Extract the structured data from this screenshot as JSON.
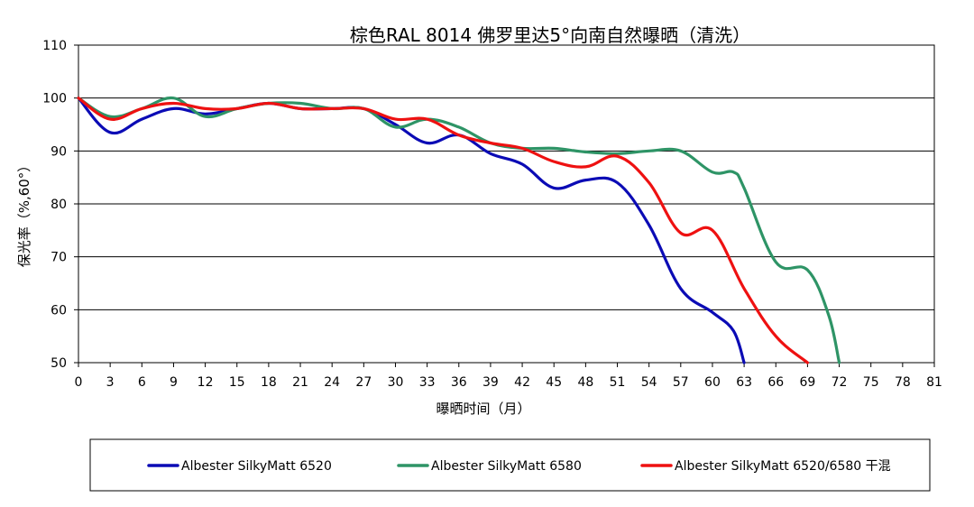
{
  "chart_data": {
    "type": "line",
    "title": "棕色RAL 8014 佛罗里达5°向南自然曝晒（清洗）",
    "xlabel": "曝晒时间（月）",
    "ylabel": "保光率（%,60°）",
    "xlim": [
      0,
      81
    ],
    "ylim": [
      50,
      110
    ],
    "x_ticks": [
      0,
      3,
      6,
      9,
      12,
      15,
      18,
      21,
      24,
      27,
      30,
      33,
      36,
      39,
      42,
      45,
      48,
      51,
      54,
      57,
      60,
      63,
      66,
      69,
      72,
      75,
      78,
      81
    ],
    "y_ticks": [
      50,
      60,
      70,
      80,
      90,
      100,
      110
    ],
    "grid": "horizontal",
    "legend_position": "bottom",
    "series": [
      {
        "name": "Albester SilkyMatt 6520",
        "color": "#0b0bb5",
        "x": [
          0,
          3,
          6,
          9,
          12,
          15,
          18,
          21,
          24,
          27,
          30,
          33,
          36,
          39,
          42,
          45,
          48,
          51,
          54,
          57,
          60,
          62,
          63
        ],
        "y": [
          100,
          93.5,
          96,
          98,
          97,
          98,
          99,
          98,
          98,
          98,
          95,
          91.5,
          93,
          89.5,
          87.5,
          83,
          84.5,
          84,
          76,
          64,
          59.5,
          56,
          50
        ]
      },
      {
        "name": "Albester SilkyMatt 6580",
        "color": "#2e9466",
        "x": [
          0,
          3,
          6,
          9,
          12,
          15,
          18,
          21,
          24,
          27,
          30,
          33,
          36,
          39,
          42,
          45,
          48,
          51,
          54,
          57,
          60,
          62,
          63,
          66,
          69,
          71,
          72
        ],
        "y": [
          100,
          96.5,
          98,
          100,
          96.5,
          98,
          99,
          99,
          98,
          98,
          94.5,
          96,
          94.5,
          91.5,
          90.5,
          90.5,
          89.8,
          89.5,
          90,
          90,
          86,
          86,
          83,
          69,
          67.5,
          59,
          50
        ]
      },
      {
        "name": "Albester SilkyMatt 6520/6580 干混",
        "color": "#ee1111",
        "x": [
          0,
          3,
          6,
          9,
          12,
          15,
          18,
          21,
          24,
          27,
          30,
          33,
          36,
          39,
          42,
          45,
          48,
          51,
          54,
          57,
          60,
          63,
          66,
          69
        ],
        "y": [
          100,
          96,
          98,
          99,
          98,
          98,
          99,
          98,
          98,
          98,
          96,
          96,
          93,
          91.5,
          90.5,
          88,
          87,
          89,
          84,
          74.5,
          75,
          64,
          55,
          50
        ]
      }
    ]
  }
}
